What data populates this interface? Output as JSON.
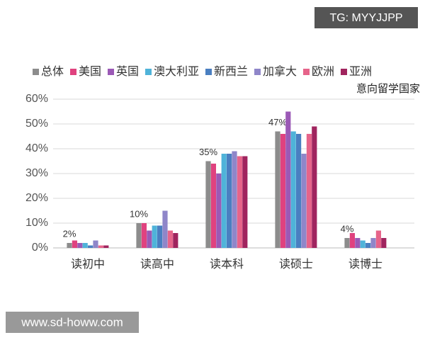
{
  "watermark_top": "TG: MYYJJPP",
  "watermark_bottom": "www.sd-howw.com",
  "chart_data": {
    "type": "bar",
    "annotation": "意向留学国家",
    "categories": [
      "读初中",
      "读高中",
      "读本科",
      "读硕士",
      "读博士"
    ],
    "series": [
      {
        "name": "总体",
        "color": "#8c8c8c",
        "values": [
          2,
          10,
          35,
          47,
          4
        ],
        "value_labels": [
          "2%",
          "10%",
          "35%",
          "47%",
          "4%"
        ]
      },
      {
        "name": "美国",
        "color": "#e0427f",
        "values": [
          3,
          10,
          34,
          46,
          6
        ]
      },
      {
        "name": "英国",
        "color": "#9b59b6",
        "values": [
          2,
          7,
          30,
          55,
          4
        ]
      },
      {
        "name": "澳大利亚",
        "color": "#4fb3d9",
        "values": [
          2,
          9,
          38,
          47,
          3
        ]
      },
      {
        "name": "新西兰",
        "color": "#4a7fc1",
        "values": [
          1,
          9,
          38,
          46,
          2
        ]
      },
      {
        "name": "加拿大",
        "color": "#8f86c9",
        "values": [
          3,
          15,
          39,
          38,
          4
        ]
      },
      {
        "name": "欧洲",
        "color": "#e6648a",
        "values": [
          1,
          7,
          37,
          46,
          7
        ]
      },
      {
        "name": "亚洲",
        "color": "#a0245e",
        "values": [
          1,
          6,
          37,
          49,
          4
        ]
      }
    ],
    "ylim": [
      0,
      60
    ],
    "yticks": [
      {
        "value": 0,
        "label": "0%"
      },
      {
        "value": 10,
        "label": "10%"
      },
      {
        "value": 20,
        "label": "20%"
      },
      {
        "value": 30,
        "label": "30%"
      },
      {
        "value": 40,
        "label": "40%"
      },
      {
        "value": 50,
        "label": "50%"
      },
      {
        "value": 60,
        "label": "60%"
      }
    ],
    "grid": true
  }
}
